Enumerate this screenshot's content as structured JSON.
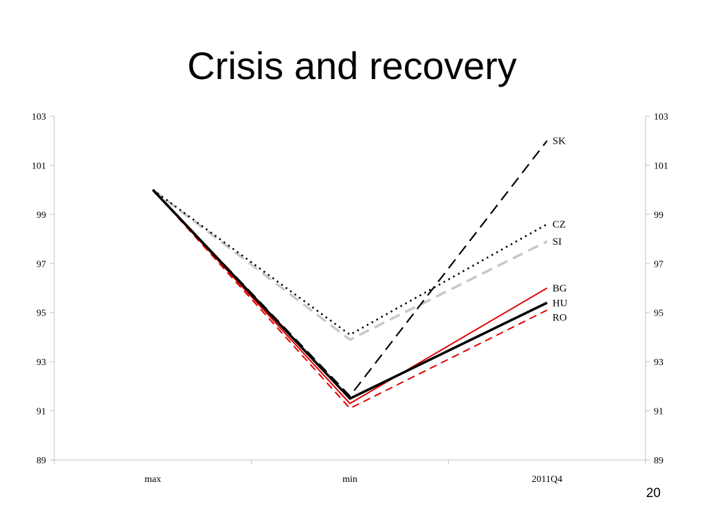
{
  "slide": {
    "title": "Crisis and recovery",
    "page_number": "20"
  },
  "chart_data": {
    "type": "line",
    "categories": [
      "max",
      "min",
      "2011Q4"
    ],
    "ylim": [
      89,
      103
    ],
    "yticks": [
      89,
      91,
      93,
      95,
      97,
      99,
      101,
      103
    ],
    "y_axes": "left and right",
    "grid": false,
    "legend": "series labels at right end of lines",
    "series": [
      {
        "name": "SK",
        "values": [
          100,
          91.6,
          102
        ],
        "color": "#000000",
        "style": "long-dash"
      },
      {
        "name": "CZ",
        "values": [
          100,
          94.1,
          98.6
        ],
        "color": "#000000",
        "style": "dotted"
      },
      {
        "name": "SI",
        "values": [
          100,
          93.9,
          97.9
        ],
        "color": "#c8c8c8",
        "style": "long-dash"
      },
      {
        "name": "BG",
        "values": [
          100,
          91.3,
          96
        ],
        "color": "#e00000",
        "style": "solid"
      },
      {
        "name": "HU",
        "values": [
          100,
          91.5,
          95.4
        ],
        "color": "#000000",
        "style": "solid-thick"
      },
      {
        "name": "RO",
        "values": [
          100,
          91.1,
          95.1
        ],
        "color": "#e00000",
        "style": "dashed"
      }
    ]
  }
}
